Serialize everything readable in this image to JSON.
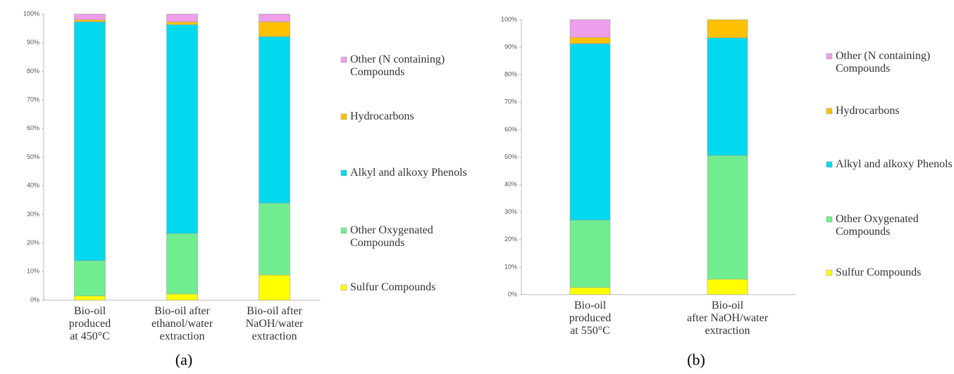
{
  "chart_data": [
    {
      "type": "stacked_bar",
      "label": "(a)",
      "categories": [
        "Bio-oil\nproduced\nat 450°C",
        "Bio-oil after\nethanol/water\nextraction",
        "Bio-oil after\nNaOH/water\nextraction"
      ],
      "series": [
        {
          "name": "Sulfur Compounds",
          "color": "#ffff00",
          "values": [
            1.5,
            2.2,
            8.8
          ]
        },
        {
          "name": "Other Oxygenated\nCompounds",
          "color": "#70ee8f",
          "values": [
            12.3,
            21.1,
            25.1
          ]
        },
        {
          "name": "Alkyl and alkoxy Phenols",
          "color": "#00d9ee",
          "values": [
            83.5,
            73.0,
            58.2
          ]
        },
        {
          "name": "Hydrocarbons",
          "color": "#ffc000",
          "values": [
            0.7,
            1.0,
            5.2
          ]
        },
        {
          "name": "Other (N containing)\nCompounds",
          "color": "#ee9eea",
          "values": [
            2.0,
            2.7,
            2.7
          ]
        }
      ],
      "ylim": [
        0,
        100
      ],
      "yticks": [
        {
          "value": 0,
          "label": "0%"
        },
        {
          "value": 10,
          "label": "10%"
        },
        {
          "value": 20,
          "label": "20%"
        },
        {
          "value": 30,
          "label": "30%"
        },
        {
          "value": 40,
          "label": "40%"
        },
        {
          "value": 50,
          "label": "50%"
        },
        {
          "value": 60,
          "label": "60%"
        },
        {
          "value": 70,
          "label": "70%"
        },
        {
          "value": 80,
          "label": "80%"
        },
        {
          "value": 90,
          "label": "90%"
        },
        {
          "value": 100,
          "label": "100%"
        }
      ]
    },
    {
      "type": "stacked_bar",
      "label": "(b)",
      "categories": [
        "Bio-oil\nproduced\nat 550°C",
        "Bio-oil\nafter NaOH/water\nextraction"
      ],
      "series": [
        {
          "name": "Sulfur Compounds",
          "color": "#ffff00",
          "values": [
            2.6,
            5.6
          ]
        },
        {
          "name": "Other Oxygenated\nCompounds",
          "color": "#70ee8f",
          "values": [
            24.5,
            45.0
          ]
        },
        {
          "name": "Alkyl and alkoxy Phenols",
          "color": "#00d9ee",
          "values": [
            64.2,
            42.8
          ]
        },
        {
          "name": "Hydrocarbons",
          "color": "#ffc000",
          "values": [
            2.3,
            6.6
          ]
        },
        {
          "name": "Other (N containing)\nCompounds",
          "color": "#ee9eea",
          "values": [
            6.4,
            0
          ]
        }
      ],
      "ylim": [
        0,
        100
      ],
      "yticks": [
        {
          "value": 0,
          "label": "0%"
        },
        {
          "value": 10,
          "label": "10%"
        },
        {
          "value": 20,
          "label": "20%"
        },
        {
          "value": 30,
          "label": "30%"
        },
        {
          "value": 40,
          "label": "40%"
        },
        {
          "value": 50,
          "label": "50%"
        },
        {
          "value": 60,
          "label": "60%"
        },
        {
          "value": 70,
          "label": "70%"
        },
        {
          "value": 80,
          "label": "80%"
        },
        {
          "value": 90,
          "label": "90%"
        },
        {
          "value": 100,
          "label": "100%"
        }
      ]
    }
  ]
}
